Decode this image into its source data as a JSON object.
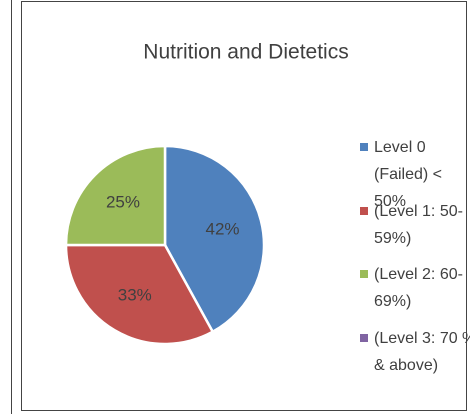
{
  "chart_data": {
    "type": "pie",
    "title": "Nutrition and Dietetics",
    "categories": [
      "Level 0 (Failed) < 50%",
      "(Level 1: 50-59%)",
      "(Level 2: 60-69%)",
      "(Level 3: 70 % & above)"
    ],
    "values": [
      42,
      33,
      25,
      0
    ],
    "value_labels": [
      "42%",
      "33%",
      "25%",
      null
    ],
    "colors": [
      "#4f81bd",
      "#c0504d",
      "#9bbb59",
      "#8064a2"
    ],
    "legend": "right"
  }
}
